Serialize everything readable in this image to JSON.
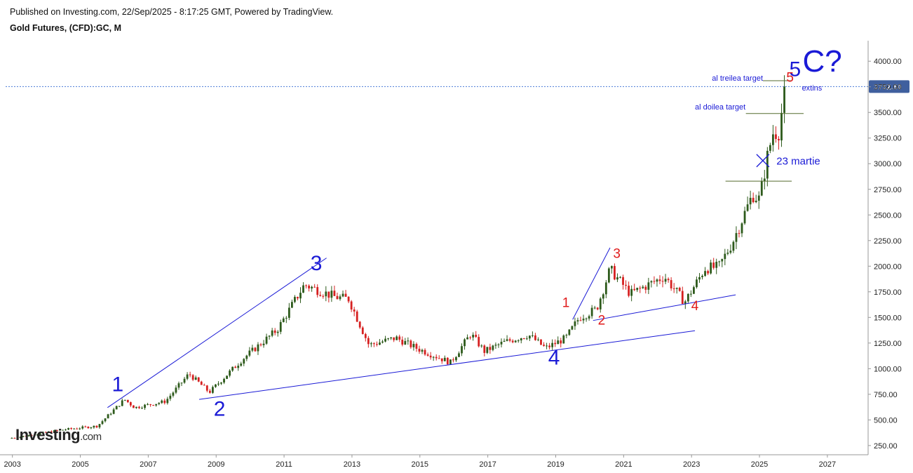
{
  "header": {
    "published": "Published on Investing.com, 22/Sep/2025 - 8:17:25 GMT, Powered by TradingView.",
    "instrument": "Gold Futures, (CFD):GC, M"
  },
  "logo": {
    "text": "Investing",
    "suffix": ".com"
  },
  "colors": {
    "up": "#2d5a1b",
    "down": "#d62020",
    "wave_major": "#1a1ad6",
    "wave_minor": "#e01b1b",
    "price_line": "#4a7ad8",
    "price_tag_bg": "#3f5f9e",
    "target_line": "#556b2f"
  },
  "chart_data": {
    "type": "candlestick",
    "timeframe": "monthly",
    "x_range": [
      2002.8,
      2028.2
    ],
    "y_range": [
      160,
      4200
    ],
    "y_ticks": [
      "250.00",
      "500.00",
      "750.00",
      "1000.00",
      "1250.00",
      "1500.00",
      "1750.00",
      "2000.00",
      "2250.00",
      "2500.00",
      "2750.00",
      "3000.00",
      "3250.00",
      "3500.00",
      "3750.00",
      "4000.00"
    ],
    "x_ticks": [
      "2003",
      "2005",
      "2007",
      "2009",
      "2011",
      "2013",
      "2015",
      "2017",
      "2019",
      "2021",
      "2023",
      "2025",
      "2027"
    ],
    "last_price": {
      "label": "3752.60",
      "value": 3752.6
    },
    "price_path": [
      [
        2002.9,
        320
      ],
      [
        2003.5,
        350
      ],
      [
        2004.5,
        405
      ],
      [
        2005.5,
        440
      ],
      [
        2006.3,
        700
      ],
      [
        2006.6,
        620
      ],
      [
        2007.5,
        680
      ],
      [
        2008.2,
        950
      ],
      [
        2008.8,
        770
      ],
      [
        2009.8,
        1100
      ],
      [
        2010.8,
        1380
      ],
      [
        2011.6,
        1820
      ],
      [
        2012.5,
        1700
      ],
      [
        2012.9,
        1680
      ],
      [
        2013.5,
        1230
      ],
      [
        2014.3,
        1300
      ],
      [
        2014.9,
        1200
      ],
      [
        2015.9,
        1060
      ],
      [
        2016.5,
        1340
      ],
      [
        2016.9,
        1170
      ],
      [
        2017.5,
        1260
      ],
      [
        2018.2,
        1330
      ],
      [
        2018.7,
        1200
      ],
      [
        2019.3,
        1300
      ],
      [
        2019.7,
        1500
      ],
      [
        2020.2,
        1580
      ],
      [
        2020.6,
        1970
      ],
      [
        2021.2,
        1730
      ],
      [
        2022.2,
        1900
      ],
      [
        2022.8,
        1650
      ],
      [
        2023.4,
        1980
      ],
      [
        2023.8,
        1990
      ],
      [
        2024.2,
        2230
      ],
      [
        2024.8,
        2700
      ],
      [
        2025.0,
        2650
      ],
      [
        2025.25,
        3100
      ],
      [
        2025.4,
        3300
      ],
      [
        2025.6,
        3320
      ],
      [
        2025.72,
        3752.6
      ]
    ],
    "wave_labels_major": [
      {
        "label": "1",
        "x": 2006.1,
        "y": 780
      },
      {
        "label": "2",
        "x": 2009.1,
        "y": 540
      },
      {
        "label": "3",
        "x": 2011.95,
        "y": 1960
      },
      {
        "label": "4",
        "x": 2018.95,
        "y": 1040
      },
      {
        "label": "5",
        "x": 2026.05,
        "y": 3855
      },
      {
        "label": "C?",
        "x": 2026.85,
        "y": 3900
      }
    ],
    "wave_labels_minor": [
      {
        "label": "1",
        "x": 2019.3,
        "y": 1600
      },
      {
        "label": "2",
        "x": 2020.35,
        "y": 1430
      },
      {
        "label": "3",
        "x": 2020.8,
        "y": 2080
      },
      {
        "label": "4",
        "x": 2023.1,
        "y": 1570
      },
      {
        "label": "5",
        "x": 2025.9,
        "y": 3800
      }
    ],
    "trend_lines": [
      {
        "from": [
          2005.8,
          620
        ],
        "to": [
          2012.25,
          2080
        ]
      },
      {
        "from": [
          2008.5,
          700
        ],
        "to": [
          2023.1,
          1370
        ]
      },
      {
        "from": [
          2019.5,
          1480
        ],
        "to": [
          2020.6,
          2180
        ]
      },
      {
        "from": [
          2020.1,
          1470
        ],
        "to": [
          2024.3,
          1720
        ]
      }
    ],
    "annotations": [
      {
        "text": "al treilea target",
        "x": 2023.6,
        "y": 3810,
        "level": 3810,
        "line_from": 2025.1,
        "line_to": 2025.95
      },
      {
        "text": "al doilea target",
        "x": 2023.1,
        "y": 3530,
        "level": 3490,
        "line_from": 2024.6,
        "line_to": 2026.3
      },
      {
        "text": "23 martie",
        "x": 2025.5,
        "y": 2990
      },
      {
        "text": "extins",
        "x": 2026.25,
        "y": 3715
      }
    ],
    "marker_x": {
      "x": 2025.1,
      "y": 3030
    },
    "support_level": {
      "y": 2830,
      "from": 2024.0,
      "to": 2025.95
    },
    "grid": false,
    "legend": "none"
  }
}
